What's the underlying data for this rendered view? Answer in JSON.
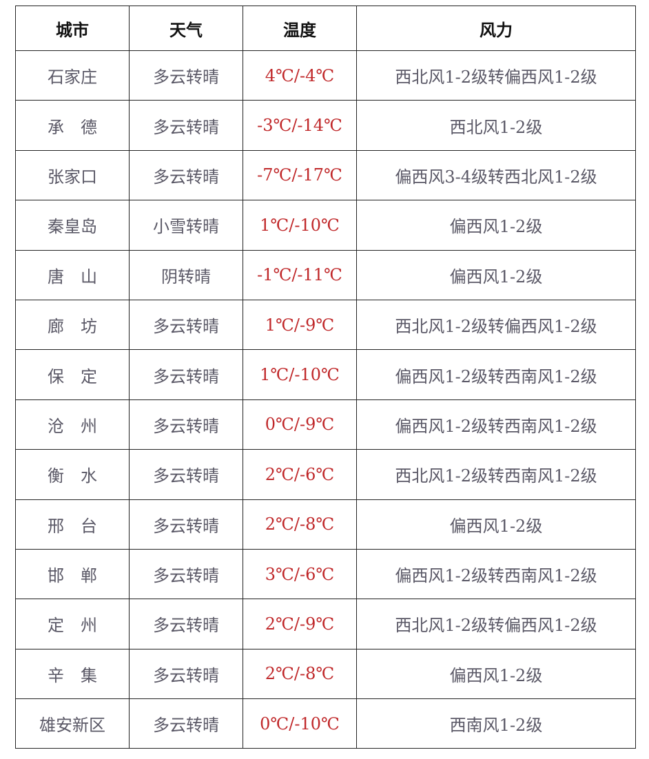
{
  "headers": [
    "城市",
    "天气",
    "温度",
    "风力"
  ],
  "rows": [
    [
      "石家庄",
      "多云转晴",
      "4℃/-4℃",
      "西北风1-2级转偏西风1-2级"
    ],
    [
      "承　德",
      "多云转晴",
      "-3℃/-14℃",
      "西北风1-2级"
    ],
    [
      "张家口",
      "多云转晴",
      "-7℃/-17℃",
      "偏西风3-4级转西北风1-2级"
    ],
    [
      "秦皇岛",
      "小雪转晴",
      "1℃/-10℃",
      "偏西风1-2级"
    ],
    [
      "唐　山",
      "阴转晴",
      "-1℃/-11℃",
      "偏西风1-2级"
    ],
    [
      "廊　坊",
      "多云转晴",
      "1℃/-9℃",
      "西北风1-2级转偏西风1-2级"
    ],
    [
      "保　定",
      "多云转晴",
      "1℃/-10℃",
      "偏西风1-2级转西南风1-2级"
    ],
    [
      "沧　州",
      "多云转晴",
      "0℃/-9℃",
      "偏西风1-2级转西南风1-2级"
    ],
    [
      "衡　水",
      "多云转晴",
      "2℃/-6℃",
      "西北风1-2级转西南风1-2级"
    ],
    [
      "邢　台",
      "多云转晴",
      "2℃/-8℃",
      "偏西风1-2级"
    ],
    [
      "邯　郸",
      "多云转晴",
      "3℃/-6℃",
      "偏西风1-2级转西南风1-2级"
    ],
    [
      "定　州",
      "多云转晴",
      "2℃/-9℃",
      "西北风1-2级转偏西风1-2级"
    ],
    [
      "辛　集",
      "多云转晴",
      "2℃/-8℃",
      "偏西风1-2级"
    ],
    [
      "雄安新区",
      "多云转晴",
      "0℃/-10℃",
      "西南风1-2级"
    ]
  ],
  "colors": {
    "temperature": "#c0282a",
    "text": "#5a5866",
    "header": "#111111"
  }
}
